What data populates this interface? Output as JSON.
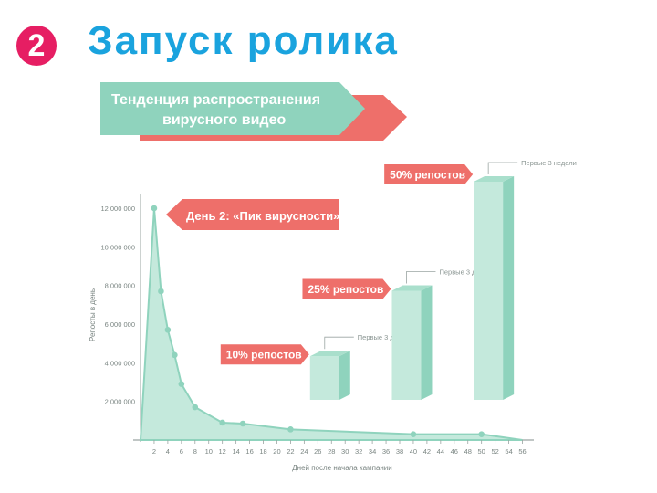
{
  "slide": {
    "number": "2",
    "title": "Запуск ролика"
  },
  "banner": {
    "line1": "Тенденция распространения",
    "line2": "вирусного видео"
  },
  "colors": {
    "badge": "#e61e63",
    "title": "#1aa3de",
    "mint": "#8fd3bd",
    "mint_light": "#c4e9dc",
    "coral": "#ee6f6a",
    "axis": "#9aa5a2"
  },
  "chart_data": {
    "type": "area",
    "ylabel": "Репосты в день",
    "xlabel": "Дней после начала кампании",
    "x_ticks": [
      2,
      4,
      6,
      8,
      10,
      12,
      14,
      16,
      18,
      20,
      22,
      24,
      26,
      28,
      30,
      32,
      34,
      36,
      38,
      40,
      42,
      44,
      46,
      48,
      50,
      52,
      54,
      56
    ],
    "y_ticks": [
      "2 000 000",
      "4 000 000",
      "6 000 000",
      "8 000 000",
      "10 000 000",
      "12 000 000"
    ],
    "ylim": [
      0,
      13000000
    ],
    "xlim": [
      0,
      57
    ],
    "x": [
      0,
      2,
      3,
      4,
      5,
      6,
      8,
      12,
      15,
      22,
      40,
      50,
      56
    ],
    "y": [
      0,
      12000000,
      7700000,
      5700000,
      4400000,
      2900000,
      1700000,
      900000,
      850000,
      550000,
      300000,
      300000,
      0
    ],
    "peak_annotation": "День 2: «Пик вирусности»",
    "bars": [
      {
        "label": "10% репостов",
        "caption": "Первые 3 дня",
        "x": 27,
        "value": 10
      },
      {
        "label": "25% репостов",
        "caption": "Первые 3 дня",
        "x": 39,
        "value": 25
      },
      {
        "label": "50% репостов",
        "caption": "Первые 3 недели",
        "x": 51,
        "value": 50
      }
    ]
  }
}
